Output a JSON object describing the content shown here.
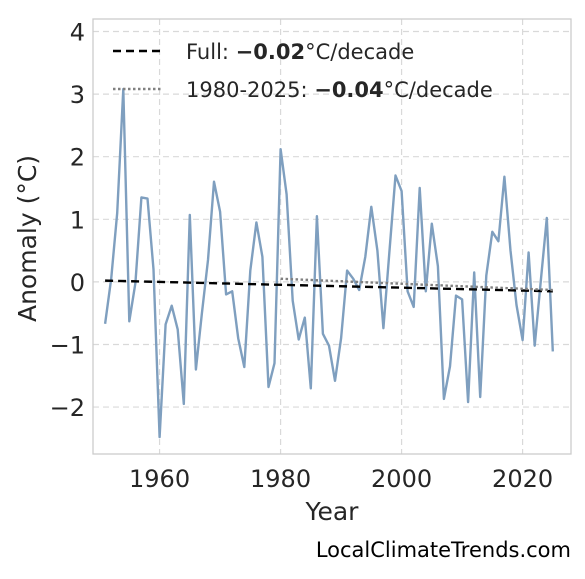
{
  "chart_data": {
    "type": "line",
    "title": "",
    "xlabel": "Year",
    "ylabel": "Anomaly (°C)",
    "xlim": [
      1949,
      2028
    ],
    "ylim": [
      -2.75,
      4.2
    ],
    "xticks": [
      1960,
      1980,
      2000,
      2020
    ],
    "xtick_labels": [
      "1960",
      "1980",
      "2000",
      "2020"
    ],
    "yticks": [
      -2,
      -1,
      0,
      1,
      2,
      3,
      4
    ],
    "ytick_labels": [
      "−2",
      "−1",
      "0",
      "1",
      "2",
      "3",
      "4"
    ],
    "grid": true,
    "legend_position": "top-left",
    "colors": {
      "anomaly": "#7f9fbf",
      "full_trend": "#000000",
      "recent_trend": "#808080"
    },
    "x": [
      1951,
      1952,
      1953,
      1954,
      1955,
      1956,
      1957,
      1958,
      1959,
      1960,
      1961,
      1962,
      1963,
      1964,
      1965,
      1966,
      1967,
      1968,
      1969,
      1970,
      1971,
      1972,
      1973,
      1974,
      1975,
      1976,
      1977,
      1978,
      1979,
      1980,
      1981,
      1982,
      1983,
      1984,
      1985,
      1986,
      1987,
      1988,
      1989,
      1990,
      1991,
      1992,
      1993,
      1994,
      1995,
      1996,
      1997,
      1998,
      1999,
      2000,
      2001,
      2002,
      2003,
      2004,
      2005,
      2006,
      2007,
      2008,
      2009,
      2010,
      2011,
      2012,
      2013,
      2014,
      2015,
      2016,
      2017,
      2018,
      2019,
      2020,
      2021,
      2022,
      2023,
      2024,
      2025
    ],
    "series": [
      {
        "values": [
          -0.67,
          0.05,
          1.1,
          3.08,
          -0.63,
          -0.02,
          1.35,
          1.33,
          0.2,
          -2.48,
          -0.68,
          -0.38,
          -0.76,
          -1.95,
          1.07,
          -1.4,
          -0.5,
          0.35,
          1.6,
          1.12,
          -0.2,
          -0.15,
          -0.9,
          -1.36,
          0.18,
          0.95,
          0.4,
          -1.68,
          -1.3,
          2.12,
          1.4,
          -0.3,
          -0.92,
          -0.57,
          -1.7,
          1.05,
          -0.83,
          -1.02,
          -1.58,
          -0.9,
          0.18,
          0.05,
          -0.13,
          0.4,
          1.2,
          0.5,
          -0.74,
          0.5,
          1.7,
          1.45,
          -0.15,
          -0.4,
          1.5,
          -0.15,
          0.93,
          0.25,
          -1.87,
          -1.35,
          -0.22,
          -0.28,
          -1.92,
          0.15,
          -1.84,
          0.1,
          0.8,
          0.65,
          1.68,
          0.5,
          -0.37,
          -0.93,
          0.47,
          -1.02,
          0.0,
          1.02,
          -1.11
        ]
      }
    ],
    "trends": [
      {
        "label_prefix": "Full: ",
        "label_value": "−0.02",
        "label_suffix": "°C/decade",
        "x": [
          1951,
          2025
        ],
        "y": [
          0.02,
          -0.15
        ]
      },
      {
        "label_prefix": "1980-2025: ",
        "label_value": "−0.04",
        "label_suffix": "°C/decade",
        "x": [
          1980,
          2025
        ],
        "y": [
          0.05,
          -0.13
        ]
      }
    ]
  },
  "watermark": "LocalClimateTrends.com"
}
